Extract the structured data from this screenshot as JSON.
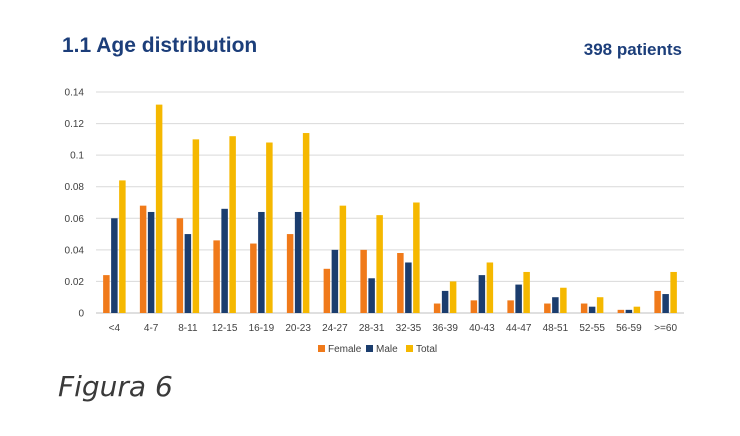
{
  "header": {
    "title": "1.1 Age distribution",
    "patients": "398 patients"
  },
  "caption": "Figura 6",
  "colors": {
    "female": "#f07a1a",
    "male": "#1b3d6e",
    "total": "#f5b800",
    "grid": "#d9d9d9"
  },
  "chart_data": {
    "type": "bar",
    "title": "",
    "xlabel": "",
    "ylabel": "",
    "ylim": [
      0,
      0.14
    ],
    "yticks": [
      "0",
      "0.02",
      "0.04",
      "0.06",
      "0.08",
      "0.1",
      "0.12",
      "0.14"
    ],
    "ytick_values": [
      0,
      0.02,
      0.04,
      0.06,
      0.08,
      0.1,
      0.12,
      0.14
    ],
    "grid": true,
    "legend": "bottom",
    "categories": [
      "<4",
      "4-7",
      "8-11",
      "12-15",
      "16-19",
      "20-23",
      "24-27",
      "28-31",
      "32-35",
      "36-39",
      "40-43",
      "44-47",
      "48-51",
      "52-55",
      "56-59",
      ">=60"
    ],
    "series": [
      {
        "name": "Female",
        "values": [
          0.024,
          0.068,
          0.06,
          0.046,
          0.044,
          0.05,
          0.028,
          0.04,
          0.038,
          0.006,
          0.008,
          0.008,
          0.006,
          0.006,
          0.002,
          0.014
        ]
      },
      {
        "name": "Male",
        "values": [
          0.06,
          0.064,
          0.05,
          0.066,
          0.064,
          0.064,
          0.04,
          0.022,
          0.032,
          0.014,
          0.024,
          0.018,
          0.01,
          0.004,
          0.002,
          0.012
        ]
      },
      {
        "name": "Total",
        "values": [
          0.084,
          0.132,
          0.11,
          0.112,
          0.108,
          0.114,
          0.068,
          0.062,
          0.07,
          0.02,
          0.032,
          0.026,
          0.016,
          0.01,
          0.004,
          0.026
        ]
      }
    ]
  }
}
